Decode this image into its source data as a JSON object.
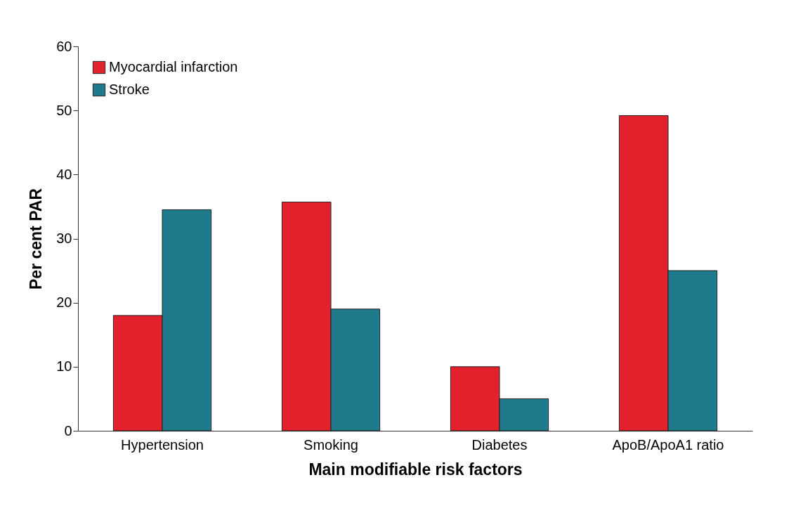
{
  "chart_data": {
    "type": "bar",
    "xlabel": "Main modifiable risk factors",
    "ylabel": "Per cent PAR",
    "categories": [
      "Hypertension",
      "Smoking",
      "Diabetes",
      "ApoB/ApoA1 ratio"
    ],
    "series": [
      {
        "name": "Myocardial infarction",
        "color": "#e3212d",
        "values": [
          18,
          35.7,
          10,
          49.2
        ]
      },
      {
        "name": "Stroke",
        "color": "#1f7a8c",
        "values": [
          34.5,
          19,
          5,
          25
        ]
      }
    ],
    "ylim": [
      0,
      60
    ],
    "yticks": [
      0,
      10,
      20,
      30,
      40,
      50,
      60
    ],
    "grid": false,
    "legend": "top left"
  }
}
